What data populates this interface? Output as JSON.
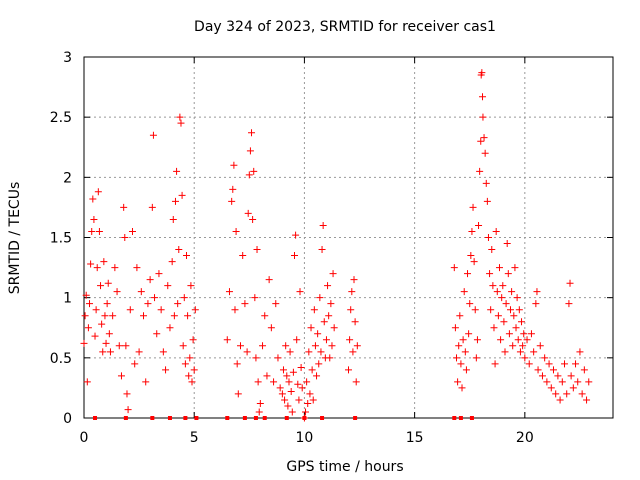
{
  "chart_data": {
    "type": "scatter",
    "title": "Day 324 of 2023, SRMTID for receiver cas1",
    "xlabel": "GPS time / hours",
    "ylabel": "SRMTID / TECUs",
    "xlim": [
      0,
      24
    ],
    "ylim": [
      0,
      3
    ],
    "grid": true,
    "marker": "+",
    "color": "#ff0000",
    "x_ticks": [
      0,
      5,
      10,
      15,
      20
    ],
    "x_tick_labels": [
      "0",
      "5",
      "10",
      "15",
      "20"
    ],
    "y_ticks": [
      0,
      0.5,
      1,
      1.5,
      2,
      2.5,
      3
    ],
    "y_tick_labels": [
      "0",
      "0.5",
      "1",
      "1.5",
      "2",
      "2.5",
      "3"
    ],
    "series": [
      {
        "name": "cas1",
        "points": [
          [
            0.0,
            0.62
          ],
          [
            0.05,
            0.85
          ],
          [
            0.1,
            1.02
          ],
          [
            0.15,
            0.3
          ],
          [
            0.2,
            0.75
          ],
          [
            0.25,
            0.95
          ],
          [
            0.3,
            1.28
          ],
          [
            0.35,
            1.55
          ],
          [
            0.4,
            1.82
          ],
          [
            0.45,
            1.65
          ],
          [
            0.5,
            0.68
          ],
          [
            0.55,
            0.9
          ],
          [
            0.6,
            1.25
          ],
          [
            0.65,
            1.88
          ],
          [
            0.7,
            1.55
          ],
          [
            0.75,
            1.1
          ],
          [
            0.8,
            0.78
          ],
          [
            0.85,
            0.55
          ],
          [
            0.9,
            1.3
          ],
          [
            0.95,
            0.85
          ],
          [
            1.0,
            0.62
          ],
          [
            1.05,
            0.95
          ],
          [
            1.1,
            1.12
          ],
          [
            1.15,
            0.7
          ],
          [
            1.2,
            0.55
          ],
          [
            1.3,
            0.85
          ],
          [
            1.4,
            1.25
          ],
          [
            1.5,
            1.05
          ],
          [
            1.6,
            0.6
          ],
          [
            1.7,
            0.35
          ],
          [
            1.8,
            1.75
          ],
          [
            1.85,
            1.5
          ],
          [
            1.9,
            0.6
          ],
          [
            1.95,
            0.2
          ],
          [
            2.0,
            0.07
          ],
          [
            2.1,
            0.9
          ],
          [
            2.2,
            1.55
          ],
          [
            2.3,
            0.45
          ],
          [
            2.4,
            1.25
          ],
          [
            2.5,
            0.55
          ],
          [
            2.6,
            1.05
          ],
          [
            2.7,
            0.85
          ],
          [
            2.8,
            0.3
          ],
          [
            2.9,
            0.95
          ],
          [
            3.0,
            1.15
          ],
          [
            3.1,
            1.75
          ],
          [
            3.15,
            2.35
          ],
          [
            3.2,
            1.0
          ],
          [
            3.3,
            0.7
          ],
          [
            3.4,
            1.2
          ],
          [
            3.5,
            0.9
          ],
          [
            3.6,
            0.55
          ],
          [
            3.7,
            0.4
          ],
          [
            3.8,
            1.1
          ],
          [
            3.9,
            0.75
          ],
          [
            4.0,
            1.3
          ],
          [
            4.05,
            1.65
          ],
          [
            4.1,
            0.85
          ],
          [
            4.15,
            1.8
          ],
          [
            4.2,
            2.05
          ],
          [
            4.25,
            0.95
          ],
          [
            4.3,
            1.4
          ],
          [
            4.35,
            2.5
          ],
          [
            4.4,
            2.45
          ],
          [
            4.45,
            1.85
          ],
          [
            4.5,
            0.6
          ],
          [
            4.55,
            1.0
          ],
          [
            4.6,
            0.45
          ],
          [
            4.65,
            1.35
          ],
          [
            4.7,
            0.85
          ],
          [
            4.75,
            0.35
          ],
          [
            4.8,
            0.5
          ],
          [
            4.85,
            1.1
          ],
          [
            4.9,
            0.3
          ],
          [
            4.95,
            0.65
          ],
          [
            5.0,
            0.4
          ],
          [
            5.05,
            0.9
          ],
          [
            6.5,
            0.65
          ],
          [
            6.6,
            1.05
          ],
          [
            6.7,
            1.8
          ],
          [
            6.75,
            1.9
          ],
          [
            6.8,
            2.1
          ],
          [
            6.85,
            0.9
          ],
          [
            6.9,
            1.55
          ],
          [
            6.95,
            0.45
          ],
          [
            7.0,
            0.2
          ],
          [
            7.1,
            0.6
          ],
          [
            7.2,
            1.35
          ],
          [
            7.3,
            0.95
          ],
          [
            7.4,
            0.55
          ],
          [
            7.45,
            1.7
          ],
          [
            7.5,
            2.02
          ],
          [
            7.55,
            2.22
          ],
          [
            7.6,
            2.37
          ],
          [
            7.65,
            1.65
          ],
          [
            7.7,
            2.05
          ],
          [
            7.75,
            1.0
          ],
          [
            7.8,
            0.5
          ],
          [
            7.85,
            1.4
          ],
          [
            7.9,
            0.3
          ],
          [
            7.95,
            0.05
          ],
          [
            8.0,
            0.12
          ],
          [
            8.1,
            0.6
          ],
          [
            8.2,
            0.85
          ],
          [
            8.3,
            0.35
          ],
          [
            8.4,
            1.15
          ],
          [
            8.5,
            0.75
          ],
          [
            8.6,
            0.3
          ],
          [
            8.7,
            0.95
          ],
          [
            8.8,
            0.5
          ],
          [
            8.9,
            0.25
          ],
          [
            9.0,
            0.2
          ],
          [
            9.05,
            0.4
          ],
          [
            9.1,
            0.15
          ],
          [
            9.15,
            0.6
          ],
          [
            9.2,
            0.35
          ],
          [
            9.25,
            0.1
          ],
          [
            9.3,
            0.3
          ],
          [
            9.35,
            0.55
          ],
          [
            9.4,
            0.22
          ],
          [
            9.45,
            0.05
          ],
          [
            9.5,
            0.38
          ],
          [
            9.55,
            1.35
          ],
          [
            9.6,
            1.52
          ],
          [
            9.65,
            0.65
          ],
          [
            9.7,
            0.28
          ],
          [
            9.75,
            0.15
          ],
          [
            9.8,
            1.05
          ],
          [
            9.85,
            0.42
          ],
          [
            9.9,
            0.25
          ],
          [
            10.0,
            0.0
          ],
          [
            10.05,
            0.05
          ],
          [
            10.1,
            0.3
          ],
          [
            10.15,
            0.12
          ],
          [
            10.2,
            0.55
          ],
          [
            10.25,
            0.2
          ],
          [
            10.3,
            0.75
          ],
          [
            10.35,
            0.4
          ],
          [
            10.4,
            0.15
          ],
          [
            10.45,
            0.9
          ],
          [
            10.5,
            0.6
          ],
          [
            10.55,
            0.35
          ],
          [
            10.6,
            0.7
          ],
          [
            10.65,
            0.45
          ],
          [
            10.7,
            1.0
          ],
          [
            10.75,
            0.55
          ],
          [
            10.8,
            1.4
          ],
          [
            10.85,
            1.6
          ],
          [
            10.9,
            0.8
          ],
          [
            10.95,
            0.5
          ],
          [
            11.0,
            0.65
          ],
          [
            11.05,
            1.1
          ],
          [
            11.1,
            0.85
          ],
          [
            11.15,
            0.5
          ],
          [
            11.2,
            0.95
          ],
          [
            11.25,
            0.6
          ],
          [
            11.3,
            1.2
          ],
          [
            11.35,
            0.75
          ],
          [
            12.0,
            0.4
          ],
          [
            12.05,
            0.65
          ],
          [
            12.1,
            0.9
          ],
          [
            12.15,
            1.05
          ],
          [
            12.2,
            0.55
          ],
          [
            12.25,
            1.15
          ],
          [
            12.3,
            0.8
          ],
          [
            12.35,
            0.3
          ],
          [
            12.4,
            0.6
          ],
          [
            16.8,
            1.25
          ],
          [
            16.85,
            0.75
          ],
          [
            16.9,
            0.5
          ],
          [
            16.95,
            0.3
          ],
          [
            17.0,
            0.6
          ],
          [
            17.05,
            0.85
          ],
          [
            17.1,
            0.45
          ],
          [
            17.15,
            0.25
          ],
          [
            17.2,
            0.65
          ],
          [
            17.25,
            1.05
          ],
          [
            17.3,
            0.55
          ],
          [
            17.35,
            0.4
          ],
          [
            17.4,
            1.2
          ],
          [
            17.45,
            0.7
          ],
          [
            17.5,
            0.95
          ],
          [
            17.55,
            1.35
          ],
          [
            17.6,
            1.55
          ],
          [
            17.65,
            1.75
          ],
          [
            17.7,
            1.3
          ],
          [
            17.75,
            0.9
          ],
          [
            17.8,
            0.5
          ],
          [
            17.85,
            0.65
          ],
          [
            17.9,
            1.6
          ],
          [
            17.95,
            2.05
          ],
          [
            18.0,
            2.3
          ],
          [
            18.02,
            2.85
          ],
          [
            18.05,
            2.87
          ],
          [
            18.08,
            2.67
          ],
          [
            18.1,
            2.5
          ],
          [
            18.15,
            2.33
          ],
          [
            18.2,
            2.2
          ],
          [
            18.25,
            1.95
          ],
          [
            18.3,
            1.8
          ],
          [
            18.35,
            1.5
          ],
          [
            18.4,
            1.2
          ],
          [
            18.45,
            0.9
          ],
          [
            18.5,
            1.4
          ],
          [
            18.55,
            1.1
          ],
          [
            18.6,
            0.75
          ],
          [
            18.65,
            0.45
          ],
          [
            18.7,
            1.55
          ],
          [
            18.75,
            1.05
          ],
          [
            18.8,
            0.85
          ],
          [
            18.85,
            1.25
          ],
          [
            18.9,
            0.65
          ],
          [
            18.95,
            1.0
          ],
          [
            19.0,
            1.1
          ],
          [
            19.05,
            0.8
          ],
          [
            19.1,
            0.55
          ],
          [
            19.15,
            0.95
          ],
          [
            19.2,
            1.45
          ],
          [
            19.25,
            1.2
          ],
          [
            19.3,
            0.7
          ],
          [
            19.35,
            0.9
          ],
          [
            19.4,
            1.05
          ],
          [
            19.45,
            0.6
          ],
          [
            19.5,
            0.85
          ],
          [
            19.55,
            1.25
          ],
          [
            19.6,
            0.75
          ],
          [
            19.65,
            1.0
          ],
          [
            19.7,
            0.65
          ],
          [
            19.75,
            0.9
          ],
          [
            19.8,
            0.55
          ],
          [
            19.85,
            0.8
          ],
          [
            19.9,
            0.6
          ],
          [
            19.95,
            0.7
          ],
          [
            20.0,
            0.5
          ],
          [
            20.1,
            0.65
          ],
          [
            20.2,
            0.45
          ],
          [
            20.3,
            0.7
          ],
          [
            20.4,
            0.55
          ],
          [
            20.5,
            0.95
          ],
          [
            20.55,
            1.05
          ],
          [
            20.6,
            0.4
          ],
          [
            20.7,
            0.6
          ],
          [
            20.8,
            0.35
          ],
          [
            20.9,
            0.5
          ],
          [
            21.0,
            0.3
          ],
          [
            21.1,
            0.45
          ],
          [
            21.2,
            0.25
          ],
          [
            21.3,
            0.4
          ],
          [
            21.4,
            0.2
          ],
          [
            21.5,
            0.35
          ],
          [
            21.6,
            0.15
          ],
          [
            21.7,
            0.3
          ],
          [
            21.8,
            0.45
          ],
          [
            21.9,
            0.2
          ],
          [
            22.0,
            0.95
          ],
          [
            22.05,
            1.12
          ],
          [
            22.1,
            0.35
          ],
          [
            22.2,
            0.25
          ],
          [
            22.3,
            0.45
          ],
          [
            22.4,
            0.3
          ],
          [
            22.5,
            0.55
          ],
          [
            22.6,
            0.2
          ],
          [
            22.7,
            0.4
          ],
          [
            22.8,
            0.15
          ],
          [
            22.9,
            0.3
          ]
        ],
        "zero_markers": [
          0.5,
          1.9,
          3.1,
          3.9,
          4.6,
          5.1,
          6.5,
          7.3,
          7.8,
          8.2,
          9.2,
          10.0,
          10.8,
          12.3,
          16.8,
          17.1,
          17.6
        ]
      }
    ]
  }
}
